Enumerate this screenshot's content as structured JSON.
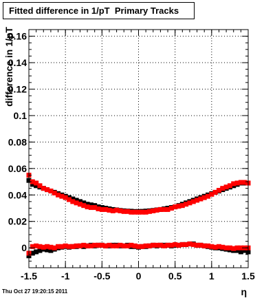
{
  "title": "Fitted difference in 1/pT  Primary Tracks",
  "footer": "Thu Oct 27 19:20:15 2011",
  "chart_data": {
    "type": "scatter",
    "title": "Fitted difference in 1/pT  Primary Tracks",
    "xlabel": "η",
    "ylabel": "difference in 1/pT",
    "xlim": [
      -1.5,
      1.5
    ],
    "ylim": [
      -0.015,
      0.165
    ],
    "grid": true,
    "x_ticks": [
      "-1.5",
      "-1",
      "-0.5",
      "0",
      "0.5",
      "1",
      "1.5"
    ],
    "x_tick_values": [
      -1.5,
      -1,
      -0.5,
      0,
      0.5,
      1,
      1.5
    ],
    "y_ticks": [
      "0",
      "0.02",
      "0.04",
      "0.06",
      "0.08",
      "0.1",
      "0.12",
      "0.14",
      "0.16"
    ],
    "y_tick_values": [
      0,
      0.02,
      0.04,
      0.06,
      0.08,
      0.1,
      0.12,
      0.14,
      0.16
    ],
    "series": [
      {
        "color": "#000000",
        "x": [
          -1.5,
          -1.45,
          -1.4,
          -1.35,
          -1.3,
          -1.25,
          -1.2,
          -1.15,
          -1.1,
          -1.05,
          -1.0,
          -0.95,
          -0.9,
          -0.85,
          -0.8,
          -0.75,
          -0.7,
          -0.65,
          -0.6,
          -0.55,
          -0.5,
          -0.45,
          -0.4,
          -0.35,
          -0.3,
          -0.25,
          -0.2,
          -0.15,
          -0.1,
          -0.05,
          0.0,
          0.05,
          0.1,
          0.15,
          0.2,
          0.25,
          0.3,
          0.35,
          0.4,
          0.45,
          0.5,
          0.55,
          0.6,
          0.65,
          0.7,
          0.75,
          0.8,
          0.85,
          0.9,
          0.95,
          1.0,
          1.05,
          1.1,
          1.15,
          1.2,
          1.25,
          1.3,
          1.35,
          1.4,
          1.45,
          1.5
        ],
        "y": [
          0.051,
          0.048,
          0.047,
          0.046,
          0.045,
          0.044,
          0.043,
          0.042,
          0.041,
          0.04,
          0.039,
          0.038,
          0.037,
          0.036,
          0.035,
          0.034,
          0.033,
          0.0325,
          0.032,
          0.031,
          0.0305,
          0.03,
          0.0295,
          0.029,
          0.0287,
          0.0283,
          0.028,
          0.0278,
          0.0277,
          0.0275,
          0.0275,
          0.0276,
          0.0278,
          0.028,
          0.0283,
          0.0287,
          0.029,
          0.0295,
          0.03,
          0.0305,
          0.031,
          0.032,
          0.033,
          0.034,
          0.035,
          0.036,
          0.037,
          0.038,
          0.039,
          0.04,
          0.041,
          0.042,
          0.043,
          0.044,
          0.045,
          0.046,
          0.047,
          0.048,
          0.049,
          0.049,
          0.049
        ]
      },
      {
        "color": "#ff0000",
        "x": [
          -1.5,
          -1.45,
          -1.4,
          -1.35,
          -1.3,
          -1.25,
          -1.2,
          -1.15,
          -1.1,
          -1.05,
          -1.0,
          -0.95,
          -0.9,
          -0.85,
          -0.8,
          -0.75,
          -0.7,
          -0.65,
          -0.6,
          -0.55,
          -0.5,
          -0.45,
          -0.4,
          -0.35,
          -0.3,
          -0.25,
          -0.2,
          -0.15,
          -0.1,
          -0.05,
          0.0,
          0.05,
          0.1,
          0.15,
          0.2,
          0.25,
          0.3,
          0.35,
          0.4,
          0.45,
          0.5,
          0.55,
          0.6,
          0.65,
          0.7,
          0.75,
          0.8,
          0.85,
          0.9,
          0.95,
          1.0,
          1.05,
          1.1,
          1.15,
          1.2,
          1.25,
          1.3,
          1.35,
          1.4,
          1.45,
          1.5
        ],
        "y": [
          0.055,
          0.05,
          0.049,
          0.047,
          0.045,
          0.044,
          0.043,
          0.0415,
          0.04,
          0.039,
          0.038,
          0.0365,
          0.035,
          0.034,
          0.033,
          0.032,
          0.031,
          0.0305,
          0.0305,
          0.0295,
          0.029,
          0.029,
          0.0285,
          0.028,
          0.0285,
          0.028,
          0.0275,
          0.0275,
          0.027,
          0.027,
          0.027,
          0.027,
          0.027,
          0.0275,
          0.028,
          0.0285,
          0.029,
          0.029,
          0.029,
          0.03,
          0.031,
          0.0315,
          0.032,
          0.033,
          0.034,
          0.035,
          0.036,
          0.037,
          0.038,
          0.039,
          0.0405,
          0.042,
          0.0435,
          0.045,
          0.046,
          0.047,
          0.0485,
          0.049,
          0.0495,
          0.0495,
          0.049
        ]
      },
      {
        "color": "#000000",
        "x": [
          -1.5,
          -1.45,
          -1.4,
          -1.35,
          -1.3,
          -1.25,
          -1.2,
          -1.15,
          -1.1,
          -1.05,
          -1.0,
          -0.95,
          -0.9,
          -0.85,
          -0.8,
          -0.75,
          -0.7,
          -0.65,
          -0.6,
          -0.55,
          -0.5,
          -0.45,
          -0.4,
          -0.35,
          -0.3,
          -0.25,
          -0.2,
          -0.15,
          -0.1,
          -0.05,
          0.0,
          0.05,
          0.1,
          0.15,
          0.2,
          0.25,
          0.3,
          0.35,
          0.4,
          0.45,
          0.5,
          0.55,
          0.6,
          0.65,
          0.7,
          0.75,
          0.8,
          0.85,
          0.9,
          0.95,
          1.0,
          1.05,
          1.1,
          1.15,
          1.2,
          1.25,
          1.3,
          1.35,
          1.4,
          1.45,
          1.5
        ],
        "y": [
          -0.006,
          -0.004,
          -0.003,
          -0.002,
          -0.001,
          -0.0015,
          -0.002,
          -0.001,
          0.0,
          0.0005,
          0.001,
          0.0005,
          0.001,
          0.001,
          0.0015,
          0.001,
          0.0015,
          0.002,
          0.0015,
          0.002,
          0.002,
          0.0015,
          0.0015,
          0.002,
          0.002,
          0.0015,
          0.0015,
          0.002,
          0.001,
          0.001,
          0.0005,
          0.001,
          0.001,
          0.0015,
          0.002,
          0.0015,
          0.002,
          0.002,
          0.002,
          0.0015,
          0.002,
          0.002,
          0.0025,
          0.0025,
          0.003,
          0.003,
          0.002,
          0.002,
          0.0015,
          0.001,
          0.0005,
          0.0,
          0.0,
          -0.0005,
          -0.001,
          -0.0015,
          -0.002,
          -0.002,
          -0.003,
          -0.002,
          -0.003
        ]
      },
      {
        "color": "#ff0000",
        "x": [
          -1.5,
          -1.45,
          -1.4,
          -1.35,
          -1.3,
          -1.25,
          -1.2,
          -1.15,
          -1.1,
          -1.05,
          -1.0,
          -0.95,
          -0.9,
          -0.85,
          -0.8,
          -0.75,
          -0.7,
          -0.65,
          -0.6,
          -0.55,
          -0.5,
          -0.45,
          -0.4,
          -0.35,
          -0.3,
          -0.25,
          -0.2,
          -0.15,
          -0.1,
          -0.05,
          0.0,
          0.05,
          0.1,
          0.15,
          0.2,
          0.25,
          0.3,
          0.35,
          0.4,
          0.45,
          0.5,
          0.55,
          0.6,
          0.65,
          0.7,
          0.75,
          0.8,
          0.85,
          0.9,
          0.95,
          1.0,
          1.05,
          1.1,
          1.15,
          1.2,
          1.25,
          1.3,
          1.35,
          1.4,
          1.45,
          1.5
        ],
        "y": [
          -0.004,
          0.001,
          0.0015,
          0.001,
          0.0005,
          0.001,
          0.0005,
          0.0,
          0.001,
          0.001,
          0.0015,
          0.001,
          0.001,
          0.0015,
          0.0015,
          0.002,
          0.0015,
          0.0015,
          0.002,
          0.002,
          0.002,
          0.0015,
          0.002,
          0.0015,
          0.0015,
          0.002,
          0.0015,
          0.0015,
          0.002,
          0.0015,
          0.001,
          0.001,
          0.0015,
          0.0015,
          0.002,
          0.002,
          0.002,
          0.0015,
          0.002,
          0.002,
          0.0025,
          0.002,
          0.0025,
          0.0025,
          0.003,
          0.0025,
          0.002,
          0.002,
          0.0015,
          0.0015,
          0.001,
          0.0005,
          0.001,
          0.0005,
          0.0,
          0.0,
          -0.0005,
          0.0,
          0.0,
          0.0,
          0.0
        ]
      }
    ]
  }
}
